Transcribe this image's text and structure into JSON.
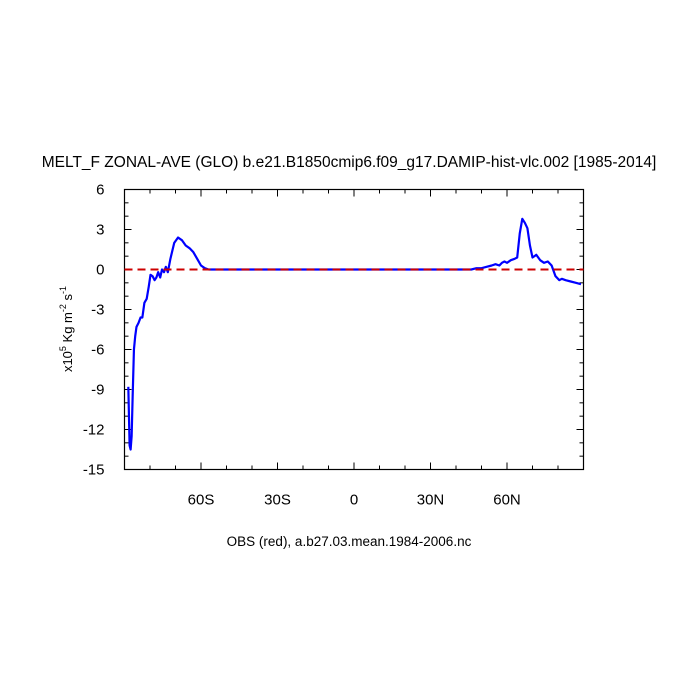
{
  "chart_data": {
    "type": "line",
    "title": "MELT_F ZONAL-AVE (GLO) b.e21.B1850cmip6.f09_g17.DAMIP-hist-vlc.002 [1985-2014]",
    "caption": "OBS (red), a.b27.03.mean.1984-2006.nc",
    "ylabel": {
      "prefix": "x10",
      "exp": "5",
      "unit_a": " Kg m",
      "exp2": "-2",
      "unit_b": " s",
      "exp3": "-1"
    },
    "xlim": [
      -90,
      90
    ],
    "ylim": [
      -15,
      6
    ],
    "x_ticks": [
      {
        "value": -60,
        "label": "60S"
      },
      {
        "value": -30,
        "label": "30S"
      },
      {
        "value": 0,
        "label": "0"
      },
      {
        "value": 30,
        "label": "30N"
      },
      {
        "value": 60,
        "label": "60N"
      }
    ],
    "y_ticks": [
      {
        "value": 6,
        "label": "6"
      },
      {
        "value": 3,
        "label": "3"
      },
      {
        "value": 0,
        "label": "0"
      },
      {
        "value": -3,
        "label": "-3"
      },
      {
        "value": -6,
        "label": "-6"
      },
      {
        "value": -9,
        "label": "-9"
      },
      {
        "value": -12,
        "label": "-12"
      },
      {
        "value": -15,
        "label": "-15"
      }
    ],
    "series": [
      {
        "color": "#0000ff",
        "style": "solid",
        "x": [
          -88.5,
          -88.0,
          -87.6,
          -87.2,
          -86.8,
          -86.3,
          -85.8,
          -85.3,
          -84.5,
          -83.7,
          -83.0,
          -82.2,
          -81.3,
          -80.5,
          -79.8,
          -79.0,
          -78.2,
          -77.5,
          -76.8,
          -76.0,
          -75.3,
          -74.5,
          -73.8,
          -73.0,
          -72.0,
          -70.5,
          -69.0,
          -67.5,
          -66.0,
          -64.5,
          -63.0,
          -61.5,
          -60.0,
          -58.5,
          -57.0,
          -55.5,
          -54.0,
          -52.5,
          -51.0,
          -48.0,
          -40.0,
          -20.0,
          0.0,
          20.0,
          40.0,
          46.0,
          48.0,
          50.0,
          52.0,
          54.0,
          55.5,
          57.0,
          58.0,
          59.0,
          60.0,
          61.5,
          63.0,
          64.0,
          65.0,
          66.0,
          67.0,
          68.0,
          69.0,
          70.0,
          71.5,
          73.0,
          74.5,
          76.0,
          77.5,
          79.0,
          80.5,
          81.5,
          83.0,
          85.0,
          87.0,
          89.0
        ],
        "y": [
          -8.8,
          -13.2,
          -13.5,
          -12.5,
          -9.5,
          -6.0,
          -5.0,
          -4.3,
          -4.0,
          -3.6,
          -3.6,
          -2.5,
          -2.2,
          -1.3,
          -0.4,
          -0.5,
          -0.8,
          -0.6,
          -0.2,
          -0.6,
          0.0,
          -0.2,
          0.2,
          -0.2,
          0.8,
          2.0,
          2.4,
          2.2,
          1.8,
          1.6,
          1.3,
          0.8,
          0.3,
          0.1,
          0.0,
          0.0,
          0.0,
          0.0,
          0.0,
          0.0,
          0.0,
          0.0,
          0.0,
          0.0,
          0.0,
          0.0,
          0.1,
          0.1,
          0.2,
          0.3,
          0.4,
          0.3,
          0.5,
          0.6,
          0.5,
          0.7,
          0.8,
          0.9,
          2.7,
          3.8,
          3.5,
          3.1,
          1.8,
          0.9,
          1.1,
          0.7,
          0.5,
          0.6,
          0.3,
          -0.5,
          -0.8,
          -0.7,
          -0.8,
          -0.9,
          -1.0,
          -1.1
        ]
      },
      {
        "color": "#cc0000",
        "style": "dashed",
        "x": [
          -90,
          90
        ],
        "y": [
          0,
          0
        ]
      }
    ],
    "grid": false,
    "legend": "none"
  }
}
